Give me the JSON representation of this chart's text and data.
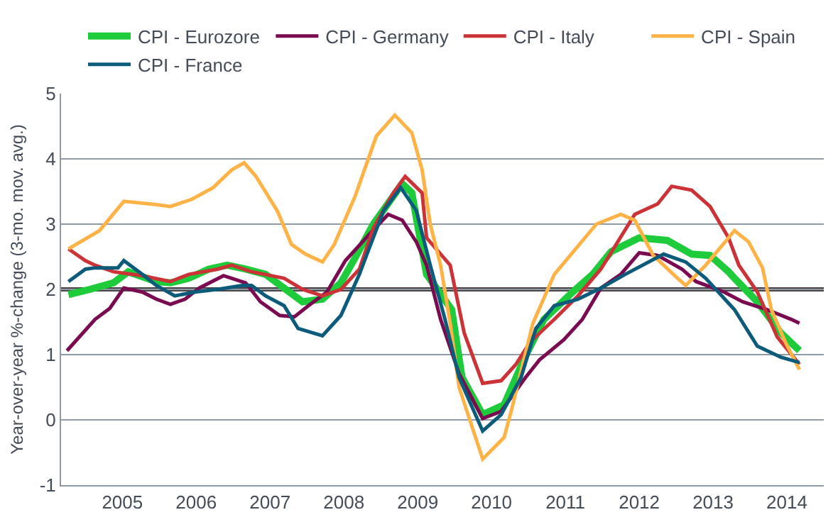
{
  "chart_data": {
    "type": "line",
    "ylabel": "Year-over-year %-change (3-mo. mov. avg.)",
    "xlim": [
      2004.17,
      2014.5
    ],
    "xticks": [
      2005,
      2006,
      2007,
      2008,
      2009,
      2010,
      2011,
      2012,
      2013,
      2014
    ],
    "ylim": [
      -1,
      5
    ],
    "yticks": [
      -1,
      0,
      1,
      2,
      3,
      4,
      5
    ],
    "grid": "y",
    "legend": "top",
    "marker": "none",
    "line_style": "solid",
    "ref_lines": [
      {
        "axis": "y",
        "value": 2,
        "color": "#4d4646"
      }
    ],
    "series": [
      {
        "name": "CPI - Eurozore",
        "color": "#1ecb3a",
        "x": [
          2004.27,
          2004.56,
          2004.88,
          2005.08,
          2005.46,
          2005.65,
          2005.9,
          2006.17,
          2006.42,
          2006.67,
          2006.94,
          2007.19,
          2007.44,
          2007.71,
          2007.96,
          2008.15,
          2008.4,
          2008.79,
          2008.92,
          2009.12,
          2009.46,
          2009.6,
          2009.88,
          2010.17,
          2010.46,
          2010.71,
          2011.1,
          2011.37,
          2011.62,
          2012.0,
          2012.38,
          2012.71,
          2012.96,
          2013.21,
          2013.29,
          2013.6,
          2013.92,
          2014.17
        ],
        "values": [
          1.92,
          2.0,
          2.1,
          2.27,
          2.12,
          2.1,
          2.17,
          2.31,
          2.37,
          2.31,
          2.23,
          2.02,
          1.81,
          1.85,
          2.1,
          2.48,
          3.0,
          3.62,
          3.48,
          2.23,
          1.69,
          0.65,
          0.08,
          0.23,
          0.98,
          1.54,
          1.96,
          2.23,
          2.58,
          2.79,
          2.75,
          2.54,
          2.52,
          2.27,
          2.17,
          1.81,
          1.33,
          1.06
        ]
      },
      {
        "name": "CPI - Germany",
        "color": "#7a0b50",
        "x": [
          2004.25,
          2004.63,
          2004.83,
          2005.02,
          2005.27,
          2005.46,
          2005.65,
          2005.85,
          2006.04,
          2006.37,
          2006.67,
          2006.87,
          2007.13,
          2007.33,
          2007.52,
          2007.77,
          2008.02,
          2008.35,
          2008.6,
          2008.79,
          2008.98,
          2009.12,
          2009.31,
          2009.56,
          2009.88,
          2010.13,
          2010.46,
          2010.65,
          2010.98,
          2011.23,
          2011.48,
          2011.75,
          2012.0,
          2012.25,
          2012.58,
          2012.77,
          2013.15,
          2013.4,
          2013.73,
          2014.06,
          2014.17
        ],
        "values": [
          1.06,
          1.54,
          1.71,
          2.02,
          1.96,
          1.85,
          1.77,
          1.85,
          2.02,
          2.21,
          2.1,
          1.81,
          1.6,
          1.58,
          1.75,
          1.96,
          2.44,
          2.85,
          3.15,
          3.06,
          2.73,
          2.37,
          1.54,
          0.71,
          0.02,
          0.13,
          0.65,
          0.92,
          1.23,
          1.54,
          2.02,
          2.23,
          2.56,
          2.52,
          2.31,
          2.12,
          1.96,
          1.81,
          1.69,
          1.54,
          1.48
        ]
      },
      {
        "name": "CPI - Italy",
        "color": "#cc3337",
        "x": [
          2004.27,
          2004.5,
          2004.63,
          2004.88,
          2005.27,
          2005.65,
          2005.9,
          2006.29,
          2006.48,
          2006.75,
          2007.19,
          2007.44,
          2007.71,
          2007.96,
          2008.21,
          2008.4,
          2008.67,
          2008.83,
          2009.06,
          2009.12,
          2009.44,
          2009.63,
          2009.88,
          2010.13,
          2010.33,
          2010.52,
          2010.85,
          2011.17,
          2011.48,
          2011.94,
          2012.25,
          2012.44,
          2012.71,
          2012.96,
          2013.21,
          2013.35,
          2013.6,
          2013.87,
          2014.17
        ],
        "values": [
          2.62,
          2.44,
          2.37,
          2.27,
          2.21,
          2.12,
          2.23,
          2.31,
          2.37,
          2.27,
          2.17,
          2.0,
          1.9,
          2.0,
          2.31,
          2.94,
          3.48,
          3.73,
          3.48,
          2.79,
          2.37,
          1.33,
          0.56,
          0.6,
          0.85,
          1.19,
          1.54,
          1.9,
          2.31,
          3.15,
          3.31,
          3.58,
          3.52,
          3.27,
          2.79,
          2.37,
          1.96,
          1.27,
          0.85
        ]
      },
      {
        "name": "CPI - Spain",
        "color": "#ffb347",
        "x": [
          2004.27,
          2004.69,
          2005.02,
          2005.46,
          2005.65,
          2005.94,
          2006.23,
          2006.48,
          2006.65,
          2006.81,
          2007.1,
          2007.29,
          2007.48,
          2007.71,
          2007.87,
          2008.15,
          2008.44,
          2008.69,
          2008.92,
          2009.06,
          2009.17,
          2009.31,
          2009.44,
          2009.56,
          2009.88,
          2010.17,
          2010.27,
          2010.56,
          2010.85,
          2011.42,
          2011.75,
          2011.94,
          2012.19,
          2012.52,
          2012.63,
          2012.9,
          2013.29,
          2013.48,
          2013.67,
          2013.79,
          2013.98,
          2014.17
        ],
        "values": [
          2.62,
          2.9,
          3.35,
          3.3,
          3.27,
          3.38,
          3.56,
          3.83,
          3.94,
          3.73,
          3.2,
          2.69,
          2.54,
          2.42,
          2.69,
          3.42,
          4.35,
          4.67,
          4.4,
          3.83,
          3.0,
          2.37,
          1.48,
          0.5,
          -0.6,
          -0.27,
          0.15,
          1.48,
          2.23,
          3.0,
          3.15,
          3.06,
          2.52,
          2.17,
          2.06,
          2.37,
          2.9,
          2.73,
          2.33,
          1.69,
          1.19,
          0.77
        ]
      },
      {
        "name": "CPI - France",
        "color": "#0d5b7b",
        "x": [
          2004.27,
          2004.5,
          2004.63,
          2004.94,
          2005.02,
          2005.27,
          2005.46,
          2005.71,
          2005.98,
          2006.29,
          2006.62,
          2006.75,
          2006.94,
          2007.19,
          2007.38,
          2007.71,
          2007.96,
          2008.21,
          2008.35,
          2008.54,
          2008.77,
          2008.98,
          2009.17,
          2009.37,
          2009.56,
          2009.88,
          2010.13,
          2010.4,
          2010.6,
          2010.85,
          2011.17,
          2011.48,
          2011.81,
          2012.33,
          2012.63,
          2012.9,
          2013.29,
          2013.6,
          2013.92,
          2014.17
        ],
        "values": [
          2.12,
          2.31,
          2.33,
          2.33,
          2.44,
          2.23,
          2.06,
          1.9,
          1.96,
          2.0,
          2.06,
          2.06,
          1.9,
          1.75,
          1.4,
          1.29,
          1.6,
          2.23,
          2.65,
          3.21,
          3.56,
          3.21,
          2.37,
          1.54,
          0.65,
          -0.17,
          0.08,
          0.65,
          1.4,
          1.75,
          1.85,
          2.02,
          2.23,
          2.54,
          2.42,
          2.17,
          1.69,
          1.13,
          0.96,
          0.88
        ]
      }
    ]
  }
}
